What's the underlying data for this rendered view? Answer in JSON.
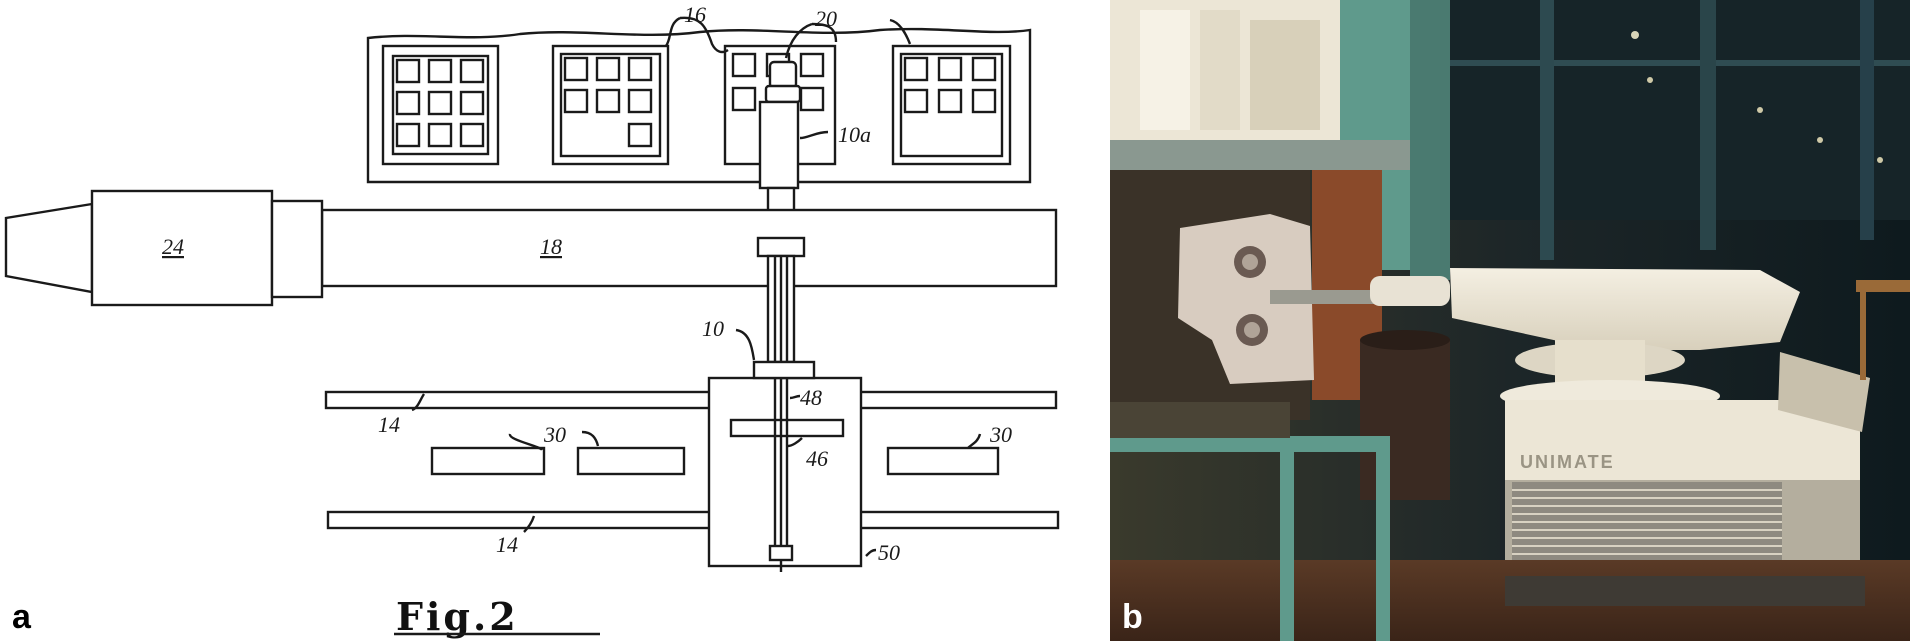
{
  "panels": {
    "a": {
      "letter": "a"
    },
    "b": {
      "letter": "b"
    }
  },
  "drawing": {
    "caption": "Fig.2",
    "labels": {
      "l16": "16",
      "l20": "20",
      "l10a": "10a",
      "l24": "24",
      "l18": "18",
      "l10": "10",
      "l14a": "14",
      "l14b": "14",
      "l30a": "30",
      "l30b": "30",
      "l48": "48",
      "l46": "46",
      "l50": "50"
    }
  },
  "photo": {
    "machine_badge": "UNIMATE"
  },
  "colors": {
    "line": "#1a1a1a",
    "photo_dark": "#1c2a2c",
    "machine_cream": "#ece6d6",
    "teal_frame": "#5f9a8c",
    "rust": "#8a4a2a"
  }
}
